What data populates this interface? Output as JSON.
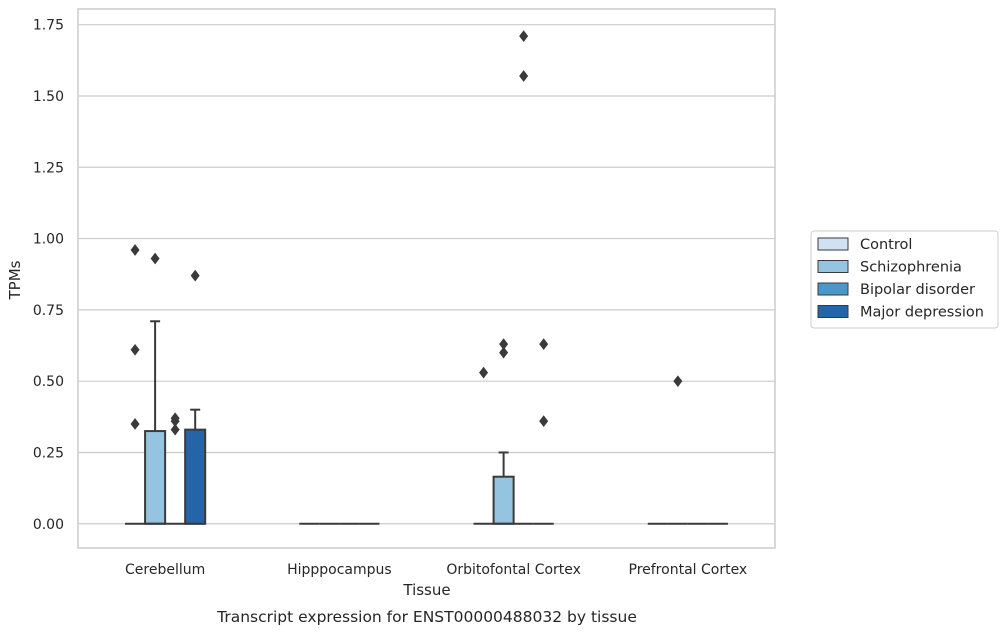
{
  "chart_data": {
    "type": "box",
    "caption": "Transcript expression for ENST00000488032 by tissue",
    "xlabel": "Tissue",
    "ylabel": "TPMs",
    "ylim": [
      -0.085,
      1.805
    ],
    "yticks": [
      0.0,
      0.25,
      0.5,
      0.75,
      1.0,
      1.25,
      1.5,
      1.75
    ],
    "ytick_labels": [
      "0.00",
      "0.25",
      "0.50",
      "0.75",
      "1.00",
      "1.25",
      "1.50",
      "1.75"
    ],
    "grid": "horizontal",
    "legend_position": "right",
    "categories": [
      "Cerebellum",
      "Hipppocampus",
      "Orbitofontal Cortex",
      "Prefrontal Cortex"
    ],
    "series": [
      {
        "name": "Control",
        "color": "#d0e1f2",
        "boxes": [
          {
            "q1": 0,
            "median": 0,
            "q3": 0,
            "whisker_low": 0,
            "whisker_high": 0,
            "outliers": [
              0.96,
              0.61,
              0.35
            ]
          },
          {
            "q1": 0,
            "median": 0,
            "q3": 0,
            "whisker_low": 0,
            "whisker_high": 0,
            "outliers": []
          },
          {
            "q1": 0,
            "median": 0,
            "q3": 0,
            "whisker_low": 0,
            "whisker_high": 0,
            "outliers": [
              0.53
            ]
          },
          {
            "q1": 0,
            "median": 0,
            "q3": 0,
            "whisker_low": 0,
            "whisker_high": 0,
            "outliers": []
          }
        ]
      },
      {
        "name": "Schizophrenia",
        "color": "#94c4df",
        "boxes": [
          {
            "q1": 0,
            "median": 0,
            "q3": 0.325,
            "whisker_low": 0,
            "whisker_high": 0.71,
            "outliers": [
              0.93
            ]
          },
          {
            "q1": 0,
            "median": 0,
            "q3": 0,
            "whisker_low": 0,
            "whisker_high": 0,
            "outliers": []
          },
          {
            "q1": 0,
            "median": 0,
            "q3": 0.165,
            "whisker_low": 0,
            "whisker_high": 0.25,
            "outliers": [
              0.6,
              0.63
            ]
          },
          {
            "q1": 0,
            "median": 0,
            "q3": 0,
            "whisker_low": 0,
            "whisker_high": 0,
            "outliers": [
              0.5
            ]
          }
        ]
      },
      {
        "name": "Bipolar disorder",
        "color": "#4a98c9",
        "boxes": [
          {
            "q1": 0,
            "median": 0,
            "q3": 0,
            "whisker_low": 0,
            "whisker_high": 0,
            "outliers": [
              0.37,
              0.36,
              0.33
            ]
          },
          {
            "q1": 0,
            "median": 0,
            "q3": 0,
            "whisker_low": 0,
            "whisker_high": 0,
            "outliers": []
          },
          {
            "q1": 0,
            "median": 0,
            "q3": 0,
            "whisker_low": 0,
            "whisker_high": 0,
            "outliers": [
              1.71,
              1.57
            ]
          },
          {
            "q1": 0,
            "median": 0,
            "q3": 0,
            "whisker_low": 0,
            "whisker_high": 0,
            "outliers": []
          }
        ]
      },
      {
        "name": "Major depression",
        "color": "#2464a9",
        "boxes": [
          {
            "q1": 0,
            "median": 0,
            "q3": 0.33,
            "whisker_low": 0,
            "whisker_high": 0.4,
            "outliers": [
              0.87
            ]
          },
          {
            "q1": 0,
            "median": 0,
            "q3": 0,
            "whisker_low": 0,
            "whisker_high": 0,
            "outliers": []
          },
          {
            "q1": 0,
            "median": 0,
            "q3": 0,
            "whisker_low": 0,
            "whisker_high": 0,
            "outliers": [
              0.63,
              0.36
            ]
          },
          {
            "q1": 0,
            "median": 0,
            "q3": 0,
            "whisker_low": 0,
            "whisker_high": 0,
            "outliers": []
          }
        ]
      }
    ],
    "colors": {
      "edge": "#3a3a3a",
      "grid": "#cccccc",
      "frame": "#cccccc",
      "text": "#262626"
    }
  }
}
